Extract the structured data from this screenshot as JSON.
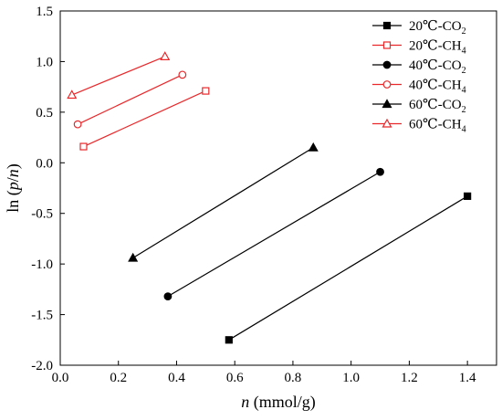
{
  "chart_data": {
    "type": "scatter",
    "xlabel_parts": [
      {
        "text": "n",
        "italic": true
      },
      {
        "text": " (mmol/g)",
        "italic": false
      }
    ],
    "ylabel_parts": [
      {
        "text": "ln (",
        "italic": false
      },
      {
        "text": "p",
        "italic": true
      },
      {
        "text": "/",
        "italic": false
      },
      {
        "text": "n",
        "italic": true
      },
      {
        "text": ")",
        "italic": false
      }
    ],
    "xlim": [
      0.0,
      1.5
    ],
    "ylim": [
      -2.0,
      1.5
    ],
    "x_ticks": [
      0.0,
      0.2,
      0.4,
      0.6,
      0.8,
      1.0,
      1.2,
      1.4
    ],
    "x_tick_labels": [
      "0.0",
      "0.2",
      "0.4",
      "0.6",
      "0.8",
      "1.0",
      "1.2",
      "1.4"
    ],
    "y_ticks": [
      -2.0,
      -1.5,
      -1.0,
      -0.5,
      0.0,
      0.5,
      1.0,
      1.5
    ],
    "y_tick_labels": [
      "-2.0",
      "-1.5",
      "-1.0",
      "-0.5",
      "0.0",
      "0.5",
      "1.0",
      "1.5"
    ],
    "grid": false,
    "legend_position": "top-right",
    "series": [
      {
        "name_main": "20℃-CO",
        "name_sub": "2",
        "color": "#000000",
        "marker": "square",
        "filled": true,
        "points": [
          [
            0.58,
            -1.75
          ],
          [
            1.4,
            -0.33
          ]
        ]
      },
      {
        "name_main": "20℃-CH",
        "name_sub": "4",
        "color": "#e8282b",
        "marker": "square",
        "filled": false,
        "points": [
          [
            0.08,
            0.16
          ],
          [
            0.5,
            0.71
          ]
        ]
      },
      {
        "name_main": "40℃-CO",
        "name_sub": "2",
        "color": "#000000",
        "marker": "circle",
        "filled": true,
        "points": [
          [
            0.37,
            -1.32
          ],
          [
            1.1,
            -0.09
          ]
        ]
      },
      {
        "name_main": "40℃-CH",
        "name_sub": "4",
        "color": "#e8282b",
        "marker": "circle",
        "filled": false,
        "points": [
          [
            0.06,
            0.38
          ],
          [
            0.42,
            0.87
          ]
        ]
      },
      {
        "name_main": "60℃-CO",
        "name_sub": "2",
        "color": "#000000",
        "marker": "triangle",
        "filled": true,
        "points": [
          [
            0.25,
            -0.94
          ],
          [
            0.87,
            0.15
          ]
        ]
      },
      {
        "name_main": "60℃-CH",
        "name_sub": "4",
        "color": "#e8282b",
        "marker": "triangle",
        "filled": false,
        "points": [
          [
            0.04,
            0.67
          ],
          [
            0.36,
            1.05
          ]
        ]
      }
    ]
  }
}
